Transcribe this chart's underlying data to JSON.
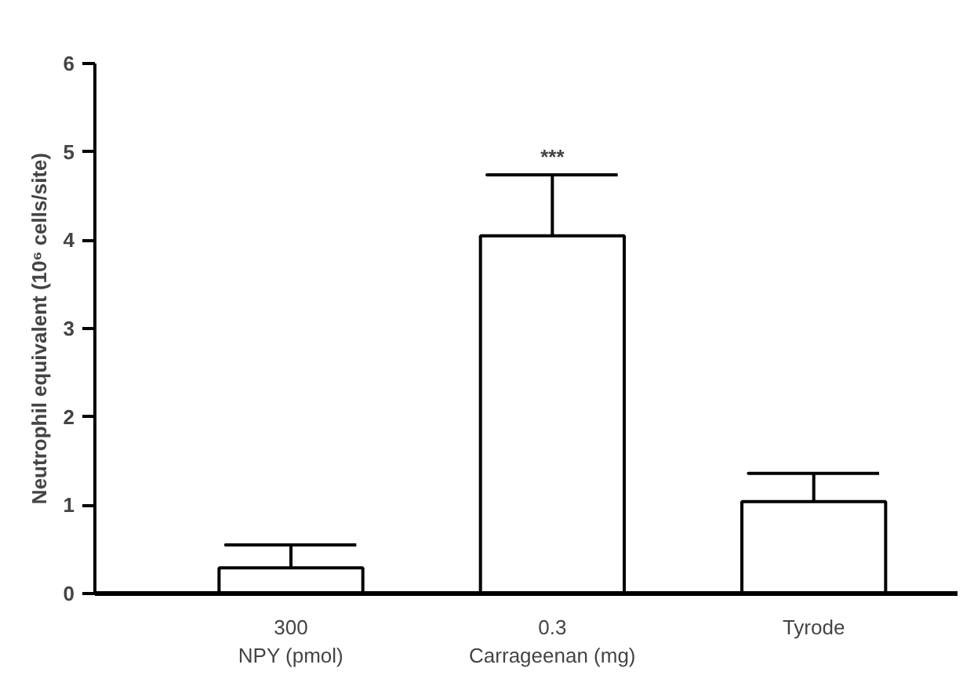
{
  "chart_data": {
    "type": "bar",
    "ylabel": "Neutrophil equivalent (10⁶ cells/site)",
    "categories": [
      "300\nNPY (pmol)",
      "0.3\nCarrageenan (mg)",
      "Tyrode"
    ],
    "values": [
      0.29,
      4.05,
      1.04
    ],
    "errors": [
      0.26,
      0.69,
      0.32
    ],
    "color": "#ffffff",
    "ylim": [
      0,
      6
    ],
    "yticks": [
      0,
      1,
      2,
      3,
      4,
      5,
      6
    ],
    "grid": false,
    "annotations": [
      {
        "text": "***",
        "x": "0.3\nCarrageenan (mg)",
        "y": 4.74
      }
    ]
  }
}
